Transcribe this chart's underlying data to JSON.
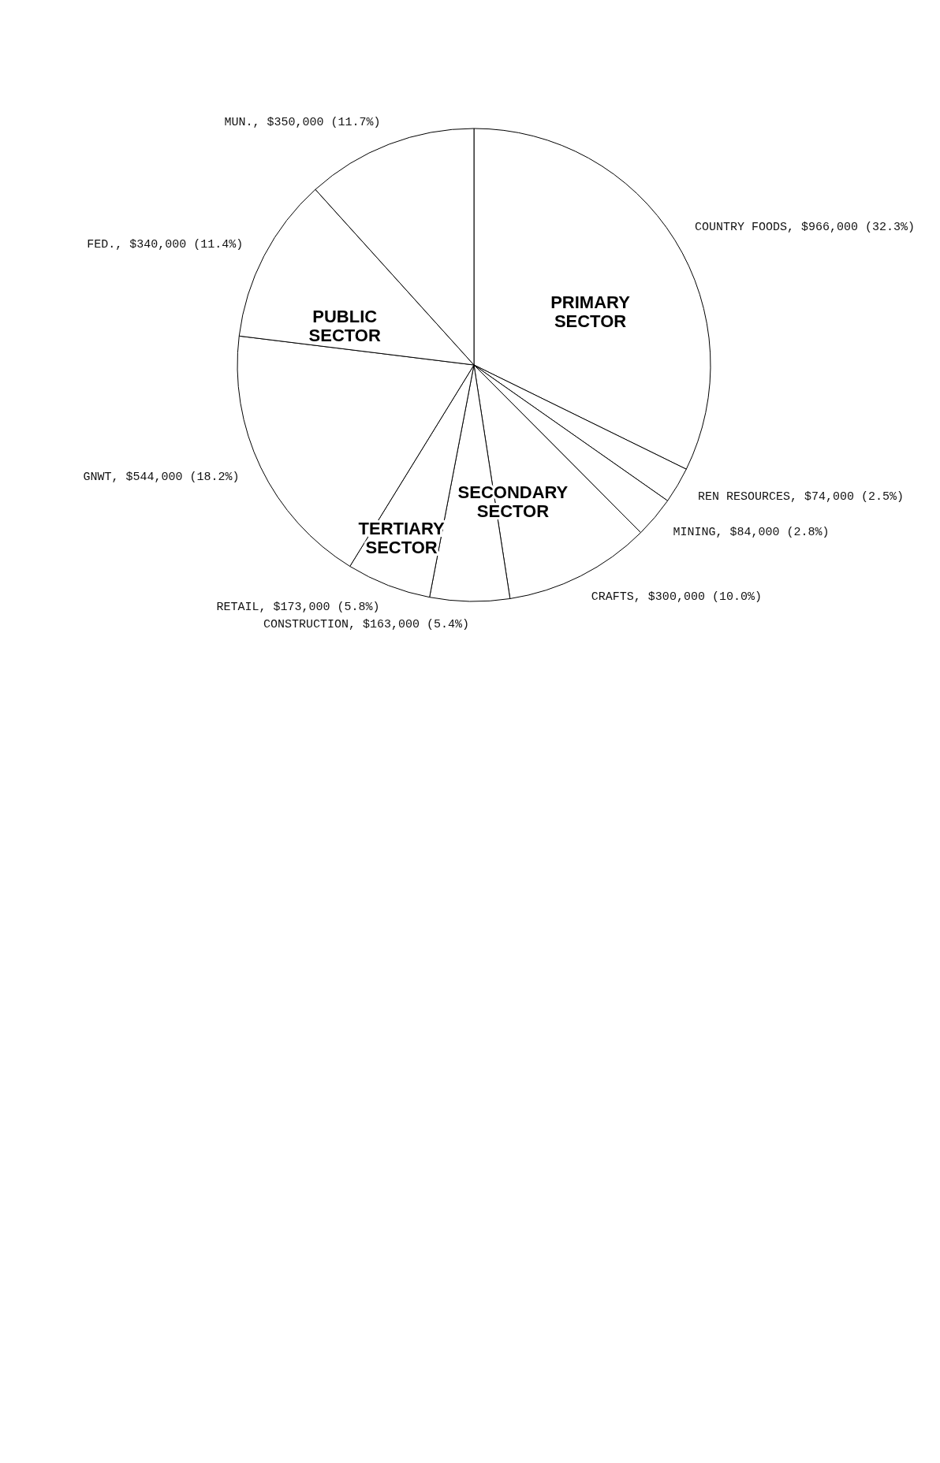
{
  "chart_data": {
    "type": "pie",
    "categories": [
      "COUNTRY FOODS",
      "REN RESOURCES",
      "MINING",
      "CRAFTS",
      "CONSTRUCTION",
      "RETAIL",
      "GNWT",
      "FED.",
      "MUN."
    ],
    "values": [
      966000,
      74000,
      84000,
      300000,
      163000,
      173000,
      544000,
      340000,
      350000
    ],
    "value_labels": [
      "$966,000 (32.3%)",
      "$74,000 (2.5%)",
      "$84,000 (2.8%)",
      "$300,000 (10.0%)",
      "$163,000 (5.4%)",
      "$173,000 (5.8%)",
      "$544,000 (18.2%)",
      "$340,000 (11.4%)",
      "$350,000 (11.7%)"
    ],
    "colors": [
      "#ffffff",
      "#ffffff",
      "#ffffff",
      "#ffffff",
      "#ffffff",
      "#ffffff",
      "#ffffff",
      "#ffffff",
      "#ffffff"
    ],
    "annotations": [
      "PRIMARY SECTOR",
      "SECONDARY SECTOR",
      "TERTIARY SECTOR",
      "PUBLIC SECTOR"
    ]
  }
}
